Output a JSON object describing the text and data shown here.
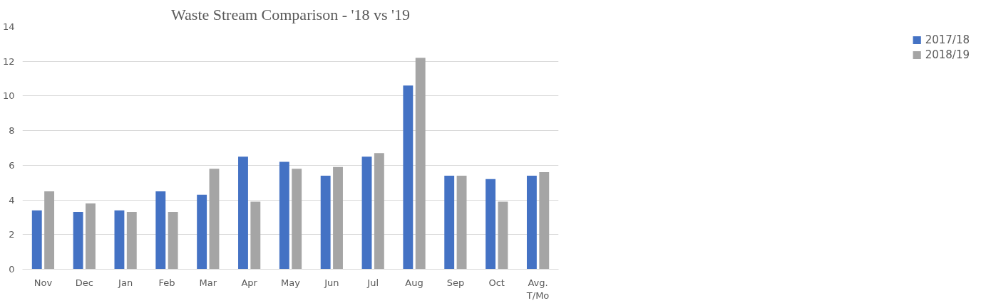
{
  "chart_data": {
    "type": "bar",
    "title": "Waste Stream Comparison - '18 vs '19",
    "categories": [
      "Nov",
      "Dec",
      "Jan",
      "Feb",
      "Mar",
      "Apr",
      "May",
      "Jun",
      "Jul",
      "Aug",
      "Sep",
      "Oct",
      "Avg.\nT/Mo"
    ],
    "series": [
      {
        "name": "2017/18",
        "color": "#4472c4",
        "values": [
          3.4,
          3.3,
          3.4,
          4.5,
          4.3,
          6.5,
          6.2,
          5.4,
          6.5,
          10.6,
          5.4,
          5.2,
          5.4
        ]
      },
      {
        "name": "2018/19",
        "color": "#a5a5a5",
        "values": [
          4.5,
          3.8,
          3.3,
          3.3,
          5.8,
          3.9,
          5.8,
          5.9,
          6.7,
          12.2,
          5.4,
          3.9,
          5.6
        ]
      }
    ],
    "ylim": [
      0,
      14
    ],
    "yticks": [
      0,
      2,
      4,
      6,
      8,
      10,
      12,
      14
    ],
    "grid": "y",
    "legend": "right"
  }
}
